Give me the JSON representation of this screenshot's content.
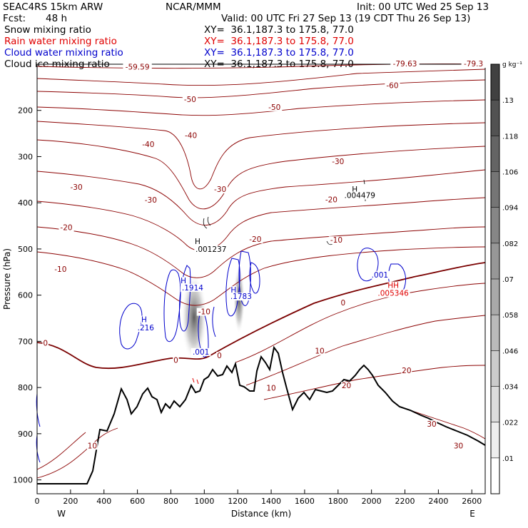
{
  "header": {
    "model": "SEAC4RS 15km ARW",
    "center": "NCAR/MMM",
    "init": "Init: 00 UTC Wed 25 Sep 13",
    "fcst_label": "Fcst:",
    "fcst_value": "48 h",
    "valid": "Valid: 00 UTC Fri 27 Sep 13 (19 CDT Thu 26 Sep 13)"
  },
  "fields": [
    {
      "name": "Snow mixing ratio",
      "xy": "XY=  36.1,187.3 to 175.8, 77.0",
      "color": "#000000"
    },
    {
      "name": "Rain water mixing ratio",
      "xy": "XY=  36.1,187.3 to 175.8, 77.0",
      "color": "#e00000"
    },
    {
      "name": "Cloud water mixing ratio",
      "xy": "XY=  36.1,187.3 to 175.8, 77.0",
      "color": "#0000cc"
    },
    {
      "name": "Cloud ice mixing ratio",
      "xy": "XY=  36.1,187.3 to 175.8, 77.0",
      "color": "#000000"
    }
  ],
  "chart_data": {
    "type": "contour cross-section",
    "xlabel": "Distance (km)",
    "ylabel": "Pressure (hPa)",
    "x_ticks": [
      0,
      200,
      400,
      600,
      800,
      1000,
      1200,
      1400,
      1600,
      1800,
      2000,
      2200,
      2400,
      2600
    ],
    "y_ticks": [
      200,
      300,
      400,
      500,
      600,
      700,
      800,
      900,
      1000
    ],
    "xlim": [
      0,
      2680
    ],
    "ylim": [
      1030,
      100
    ],
    "end_left": "W",
    "end_right": "E",
    "colorbar": {
      "unit": "g kg⁻¹",
      "levels": [
        ".01",
        ".022",
        ".034",
        ".046",
        ".058",
        ".07",
        ".082",
        ".094",
        ".106",
        ".118",
        ".13"
      ]
    },
    "labels": [
      {
        "text": "-59.59",
        "x": 600,
        "p": 110,
        "color": "#8b0000"
      },
      {
        "text": "-79.63",
        "x": 2200,
        "p": 103,
        "color": "#8b0000"
      },
      {
        "text": "-79.3",
        "x": 2610,
        "p": 103,
        "color": "#8b0000"
      },
      {
        "text": "-50",
        "x": 915,
        "p": 180,
        "color": "#8b0000"
      },
      {
        "text": "-50",
        "x": 1420,
        "p": 197,
        "color": "#8b0000"
      },
      {
        "text": "-60",
        "x": 2125,
        "p": 150,
        "color": "#8b0000"
      },
      {
        "text": "-40",
        "x": 920,
        "p": 258,
        "color": "#8b0000"
      },
      {
        "text": "-40",
        "x": 665,
        "p": 278,
        "color": "#8b0000"
      },
      {
        "text": "-30",
        "x": 1800,
        "p": 315,
        "color": "#8b0000"
      },
      {
        "text": "-30",
        "x": 235,
        "p": 370,
        "color": "#8b0000"
      },
      {
        "text": "-30",
        "x": 1095,
        "p": 375,
        "color": "#8b0000"
      },
      {
        "text": "-30",
        "x": 680,
        "p": 398,
        "color": "#8b0000"
      },
      {
        "text": "-20",
        "x": 1760,
        "p": 397,
        "color": "#8b0000"
      },
      {
        "text": "-20",
        "x": 175,
        "p": 458,
        "color": "#8b0000"
      },
      {
        "text": "-20",
        "x": 1305,
        "p": 483,
        "color": "#8b0000"
      },
      {
        "text": "-10",
        "x": 1790,
        "p": 485,
        "color": "#8b0000"
      },
      {
        "text": "-10",
        "x": 140,
        "p": 548,
        "color": "#8b0000"
      },
      {
        "text": "-10",
        "x": 1000,
        "p": 640,
        "color": "#8b0000"
      },
      {
        "text": "0",
        "x": 50,
        "p": 708,
        "color": "#8b0000"
      },
      {
        "text": "0",
        "x": 830,
        "p": 745,
        "color": "#8b0000"
      },
      {
        "text": "0",
        "x": 1090,
        "p": 735,
        "color": "#8b0000"
      },
      {
        "text": "0",
        "x": 1830,
        "p": 621,
        "color": "#8b0000"
      },
      {
        "text": "10",
        "x": 1690,
        "p": 725,
        "color": "#8b0000"
      },
      {
        "text": "10",
        "x": 1400,
        "p": 805,
        "color": "#8b0000"
      },
      {
        "text": "10",
        "x": 330,
        "p": 930,
        "color": "#8b0000"
      },
      {
        "text": "20",
        "x": 2210,
        "p": 767,
        "color": "#8b0000"
      },
      {
        "text": "20",
        "x": 1850,
        "p": 800,
        "color": "#8b0000"
      },
      {
        "text": "30",
        "x": 2360,
        "p": 883,
        "color": "#8b0000"
      },
      {
        "text": "30",
        "x": 2520,
        "p": 930,
        "color": "#8b0000"
      },
      {
        "text": "H",
        "x": 1900,
        "p": 375,
        "color": "#000000"
      },
      {
        "text": ".004479",
        "x": 1930,
        "p": 388,
        "color": "#000000"
      },
      {
        "text": "H",
        "x": 960,
        "p": 488,
        "color": "#000000"
      },
      {
        "text": ".001237",
        "x": 1040,
        "p": 505,
        "color": "#000000"
      },
      {
        "text": "H",
        "x": 875,
        "p": 573,
        "color": "#0000cc"
      },
      {
        "text": ".1914",
        "x": 930,
        "p": 588,
        "color": "#0000cc"
      },
      {
        "text": "H",
        "x": 1175,
        "p": 593,
        "color": "#0000cc"
      },
      {
        "text": ".1783",
        "x": 1220,
        "p": 607,
        "color": "#0000cc"
      },
      {
        "text": "H",
        "x": 640,
        "p": 657,
        "color": "#0000cc"
      },
      {
        "text": ".216",
        "x": 650,
        "p": 675,
        "color": "#0000cc"
      },
      {
        "text": ".001",
        "x": 980,
        "p": 727,
        "color": "#0000cc"
      },
      {
        "text": ".001",
        "x": 2050,
        "p": 560,
        "color": "#0000cc"
      },
      {
        "text": "HH",
        "x": 2130,
        "p": 583,
        "color": "#e00000"
      },
      {
        "text": ".005346",
        "x": 2130,
        "p": 600,
        "color": "#e00000"
      }
    ]
  }
}
